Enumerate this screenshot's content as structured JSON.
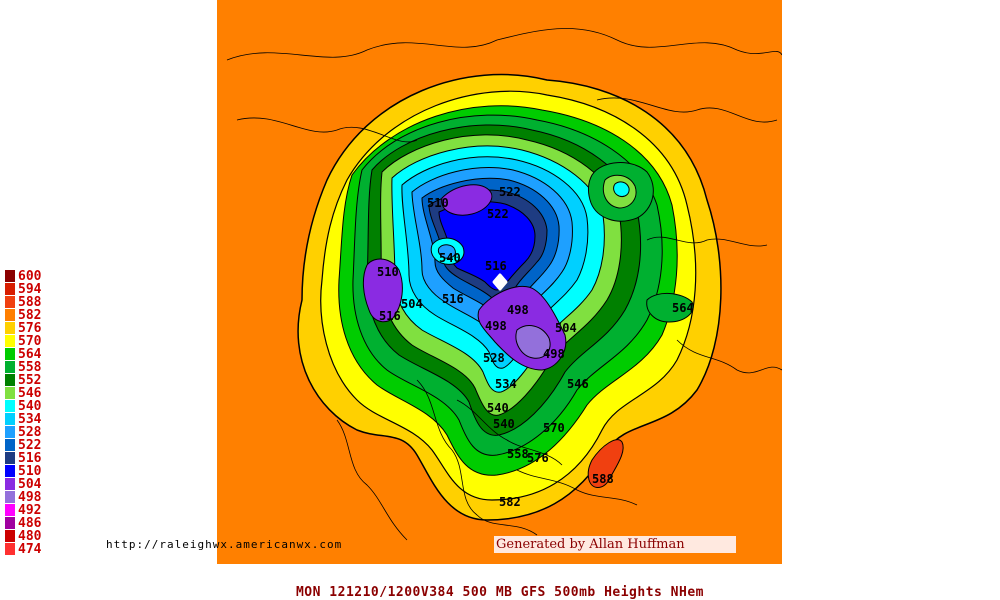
{
  "legend": [
    {
      "label": "600",
      "color": "#8b0000"
    },
    {
      "label": "594",
      "color": "#d81d00"
    },
    {
      "label": "588",
      "color": "#f04010"
    },
    {
      "label": "582",
      "color": "#ff7f00"
    },
    {
      "label": "576",
      "color": "#ffd000"
    },
    {
      "label": "570",
      "color": "#ffff00"
    },
    {
      "label": "564",
      "color": "#00cc00"
    },
    {
      "label": "558",
      "color": "#00b030"
    },
    {
      "label": "552",
      "color": "#008000"
    },
    {
      "label": "546",
      "color": "#80e040"
    },
    {
      "label": "540",
      "color": "#00ffff"
    },
    {
      "label": "534",
      "color": "#00d0ff"
    },
    {
      "label": "528",
      "color": "#1ea0ff"
    },
    {
      "label": "522",
      "color": "#0064c8"
    },
    {
      "label": "516",
      "color": "#1e3c82"
    },
    {
      "label": "510",
      "color": "#0000ff"
    },
    {
      "label": "504",
      "color": "#8a2be2"
    },
    {
      "label": "498",
      "color": "#9370db"
    },
    {
      "label": "492",
      "color": "#ff00ff"
    },
    {
      "label": "486",
      "color": "#a000a0"
    },
    {
      "label": "480",
      "color": "#cc0000"
    },
    {
      "label": "474",
      "color": "#ff3030"
    }
  ],
  "map": {
    "contour_labels": [
      "510",
      "522",
      "522",
      "540",
      "516",
      "510",
      "504",
      "516",
      "516",
      "498",
      "504",
      "498",
      "498",
      "528",
      "534",
      "540",
      "540",
      "558",
      "570",
      "576",
      "582",
      "588",
      "546",
      "564"
    ],
    "pole_marker": "north-pole-marker"
  },
  "url_text": "http://raleighwx.americanwx.com",
  "credit_text": "Generated by Allan Huffman",
  "caption": "MON 121210/1200V384  500 MB GFS 500mb Heights NHem"
}
